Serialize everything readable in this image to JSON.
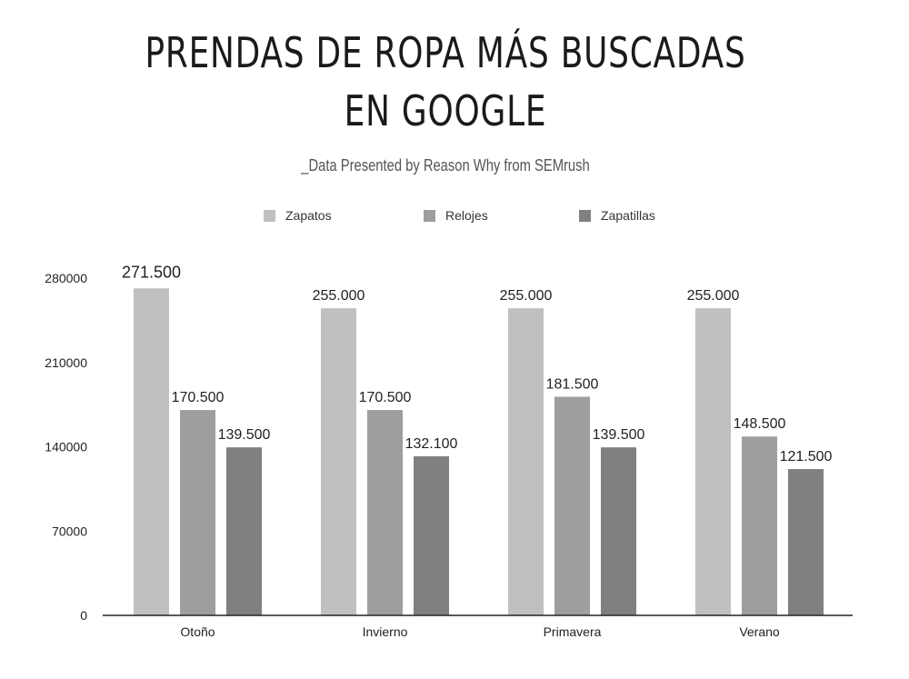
{
  "chart_data": {
    "type": "bar",
    "title_line1": "PRENDAS DE ROPA MÁS BUSCADAS",
    "title_line2": "EN GOOGLE",
    "subtitle": "_Data Presented by Reason Why from SEMrush",
    "categories": [
      "Otoño",
      "Invierno",
      "Primavera",
      "Verano"
    ],
    "series": [
      {
        "name": "Zapatos",
        "color": "#c0c0c0",
        "values": [
          271500,
          255000,
          255000,
          255000
        ],
        "labels": [
          "271.500",
          "255.000",
          "255.000",
          "255.000"
        ]
      },
      {
        "name": "Relojes",
        "color": "#9e9e9e",
        "values": [
          170500,
          170500,
          181500,
          148500
        ],
        "labels": [
          "170.500",
          "170.500",
          "181.500",
          "148.500"
        ]
      },
      {
        "name": "Zapatillas",
        "color": "#808080",
        "values": [
          139500,
          132100,
          139500,
          121500
        ],
        "labels": [
          "139.500",
          "132.100",
          "139.500",
          "121.500"
        ]
      }
    ],
    "highlight_color": "#5bc8e8",
    "highlight": {
      "series": 0,
      "category": 0
    },
    "yticks": [
      "0",
      "70000",
      "140000",
      "210000",
      "280000"
    ],
    "ytick_values": [
      0,
      70000,
      140000,
      210000,
      280000
    ],
    "ylim": [
      0,
      280000
    ],
    "xlabel": "",
    "ylabel": "",
    "legend_position": "top-center"
  }
}
